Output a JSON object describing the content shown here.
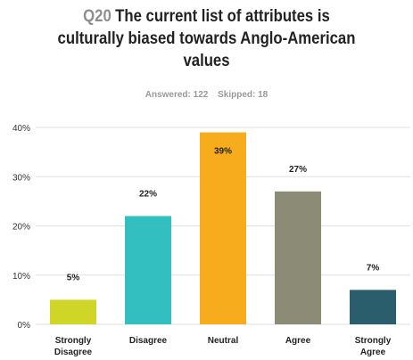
{
  "question": {
    "number": "Q20",
    "title_lines": [
      "The current list of attributes is",
      "culturally biased towards Anglo-American",
      "values"
    ],
    "answered": "Answered: 122",
    "skipped": "Skipped: 18"
  },
  "colors": {
    "strongly_disagree": "#cfd628",
    "disagree": "#33bfbf",
    "neutral": "#f7ac1e",
    "agree": "#8b8b76",
    "strongly_agree": "#2b5e6d",
    "grid": "#e1e1e1"
  },
  "chart_data": {
    "type": "bar",
    "title": "The current list of attributes is culturally biased towards Anglo-American values",
    "categories": [
      [
        "Strongly",
        "Disagree"
      ],
      [
        "Disagree"
      ],
      [
        "Neutral"
      ],
      [
        "Agree"
      ],
      [
        "Strongly",
        "Agree"
      ]
    ],
    "values": [
      5,
      22,
      39,
      27,
      7
    ],
    "value_labels": [
      "5%",
      "22%",
      "39%",
      "27%",
      "7%"
    ],
    "yticks": [
      "0%",
      "10%",
      "20%",
      "30%",
      "40%"
    ],
    "ylim": [
      0,
      40
    ],
    "xlabel": "",
    "ylabel": "",
    "grid": true,
    "legend": "none"
  }
}
